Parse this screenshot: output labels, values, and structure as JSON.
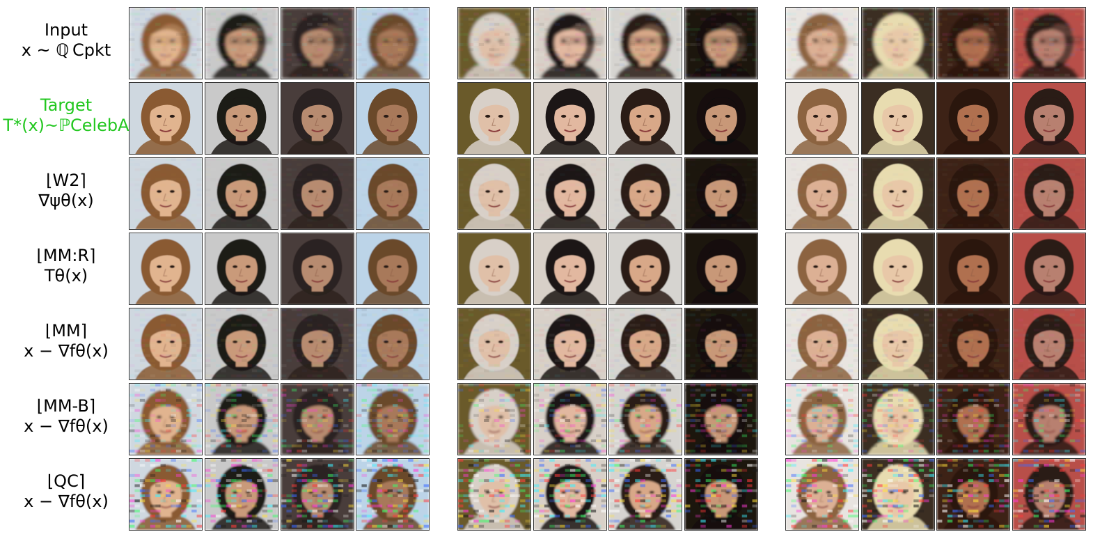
{
  "rows": [
    {
      "key": "input",
      "line1": "Input",
      "line2": "x ~ ℚ Cpkt",
      "target": false
    },
    {
      "key": "target",
      "line1": "Target",
      "line2": "T*(x)~ℙCelebA",
      "target": true
    },
    {
      "key": "w2",
      "line1": "⌊W2⌉",
      "line2": "∇ψθ(x)",
      "target": false
    },
    {
      "key": "mmr",
      "line1": "⌊MM:R⌉",
      "line2": "Tθ(x)",
      "target": false
    },
    {
      "key": "mm",
      "line1": "⌊MM⌉",
      "line2": "x − ∇fθ(x)",
      "target": false
    },
    {
      "key": "mmb",
      "line1": "⌊MM-B⌉",
      "line2": "x − ∇fθ(x)",
      "target": false
    },
    {
      "key": "qc",
      "line1": "⌊QC⌉",
      "line2": "x − ∇fθ(x)",
      "target": false
    }
  ],
  "faces": [
    {
      "bg": "#cfd8e0",
      "skin": "#e1b48f",
      "hair": "#8a5a30"
    },
    {
      "bg": "#c9c9c9",
      "skin": "#c99a7a",
      "hair": "#1e1a18"
    },
    {
      "bg": "#4a3c3a",
      "skin": "#b78b70",
      "hair": "#2b2220"
    },
    {
      "bg": "#bcd4e8",
      "skin": "#a8795a",
      "hair": "#6b4a2c"
    },
    {
      "bg": "#6a5a2a",
      "skin": "#e0c0a8",
      "hair": "#d8d0c8"
    },
    {
      "bg": "#d8d0c8",
      "skin": "#e2b8a0",
      "hair": "#1c1614"
    },
    {
      "bg": "#d6d4d0",
      "skin": "#d8a888",
      "hair": "#2a1c14"
    },
    {
      "bg": "#1a1410",
      "skin": "#c89878",
      "hair": "#120e0c"
    },
    {
      "bg": "#e8e4e0",
      "skin": "#dcb094",
      "hair": "#8c6440"
    },
    {
      "bg": "#3a2e24",
      "skin": "#e8c8a8",
      "hair": "#e8dcb0"
    },
    {
      "bg": "#3c2418",
      "skin": "#b07050",
      "hair": "#2a1810"
    },
    {
      "bg": "#b85048",
      "skin": "#b88070",
      "hair": "#2a1a18"
    }
  ],
  "row_effects": {
    "input": {
      "blur": 2.2,
      "noise": 0.15,
      "skew": 0.35
    },
    "target": {
      "blur": 0.3,
      "noise": 0.0,
      "skew": 0.0
    },
    "w2": {
      "blur": 0.6,
      "noise": 0.05,
      "skew": 0.0
    },
    "mmr": {
      "blur": 0.4,
      "noise": 0.0,
      "skew": 0.0
    },
    "mm": {
      "blur": 0.7,
      "noise": 0.12,
      "skew": 0.0
    },
    "mmb": {
      "blur": 1.6,
      "noise": 0.6,
      "skew": 0.0
    },
    "qc": {
      "blur": 1.2,
      "noise": 1.0,
      "skew": 0.0
    }
  }
}
